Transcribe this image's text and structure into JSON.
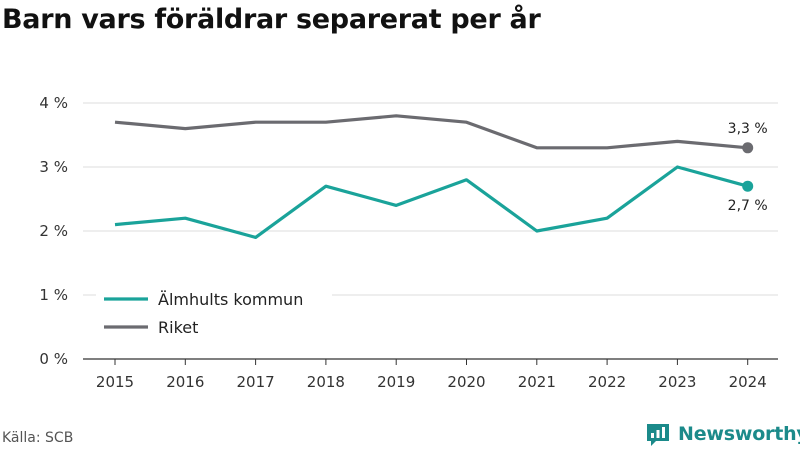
{
  "chart_data": {
    "type": "line",
    "title": "Barn vars föräldrar separerat per år",
    "xlabel": "",
    "ylabel": "",
    "x": [
      "2015",
      "2016",
      "2017",
      "2018",
      "2019",
      "2020",
      "2021",
      "2022",
      "2023",
      "2024"
    ],
    "y_ticks": [
      "0 %",
      "1 %",
      "2 %",
      "3 %",
      "4 %"
    ],
    "ylim": [
      0,
      4
    ],
    "grid": true,
    "legend_position": "lower-left",
    "series": [
      {
        "name": "Älmhults kommun",
        "color": "#1aa39a",
        "values": [
          2.1,
          2.2,
          1.9,
          2.7,
          2.4,
          2.8,
          2.0,
          2.2,
          3.0,
          2.7
        ],
        "end_label": "2,7 %"
      },
      {
        "name": "Riket",
        "color": "#6b6b70",
        "values": [
          3.7,
          3.6,
          3.7,
          3.7,
          3.8,
          3.7,
          3.3,
          3.3,
          3.4,
          3.3
        ],
        "end_label": "3,3 %"
      }
    ]
  },
  "footer": {
    "source": "Källa: SCB",
    "brand": "Newsworthy",
    "brand_icon": "newsworthy-logo-icon"
  }
}
